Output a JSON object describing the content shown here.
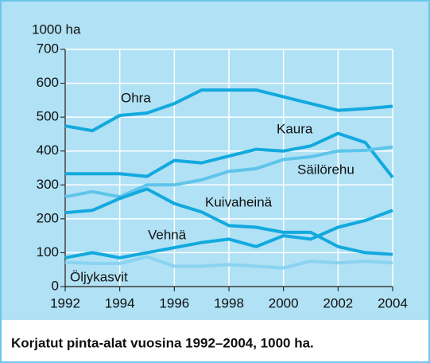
{
  "chart_data": {
    "type": "line",
    "title": "Korjatut pinta-alat vuosina 1992–2004, 1000 ha.",
    "y_label": "1000 ha",
    "x": [
      1992,
      1993,
      1994,
      1995,
      1996,
      1997,
      1998,
      1999,
      2000,
      2001,
      2002,
      2003,
      2004
    ],
    "series": [
      {
        "name": "Ohra",
        "color": "#12a9de",
        "values": [
          474,
          460,
          505,
          512,
          540,
          580,
          580,
          580,
          560,
          540,
          520,
          525,
          532
        ]
      },
      {
        "name": "Kaura",
        "color": "#12a9de",
        "values": [
          333,
          333,
          333,
          325,
          372,
          365,
          385,
          405,
          400,
          415,
          452,
          425,
          322
        ]
      },
      {
        "name": "Säilörehu",
        "color": "#5ec4ea",
        "values": [
          265,
          280,
          265,
          300,
          300,
          315,
          340,
          348,
          375,
          383,
          400,
          402,
          412
        ]
      },
      {
        "name": "Kuivaheinä",
        "color": "#12a9de",
        "values": [
          218,
          225,
          260,
          288,
          245,
          220,
          180,
          175,
          160,
          160,
          118,
          100,
          95
        ]
      },
      {
        "name": "Vehnä",
        "color": "#12a9de",
        "values": [
          85,
          100,
          85,
          100,
          115,
          130,
          140,
          118,
          150,
          140,
          175,
          195,
          225
        ]
      },
      {
        "name": "Öljykasvit",
        "color": "#8ad3f1",
        "values": [
          72,
          68,
          68,
          88,
          60,
          60,
          65,
          60,
          55,
          75,
          70,
          75,
          70
        ]
      }
    ],
    "xlim": [
      1992,
      2004
    ],
    "xticks": [
      1992,
      1994,
      1996,
      1998,
      2000,
      2002,
      2004
    ],
    "ylim": [
      0,
      700
    ],
    "yticks": [
      0,
      100,
      200,
      300,
      400,
      500,
      600,
      700
    ],
    "grid": true
  }
}
